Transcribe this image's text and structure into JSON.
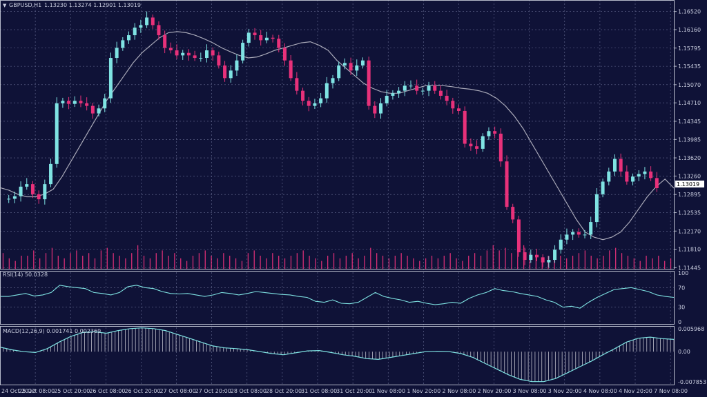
{
  "header": {
    "symbol": "GBPUSD,H1",
    "ohlc": "1.13230 1.13274 1.12901 1.13019"
  },
  "price_axis": {
    "ticks": [
      "1.16520",
      "1.16160",
      "1.15795",
      "1.15435",
      "1.15070",
      "1.14710",
      "1.14345",
      "1.13985",
      "1.13620",
      "1.13260",
      "1.12895",
      "1.12535",
      "1.12170",
      "1.11810",
      "1.11445"
    ],
    "current_price": "1.13019"
  },
  "rsi": {
    "label": "RSI(14) 50.0328",
    "ticks": [
      "100",
      "70",
      "30",
      "0"
    ]
  },
  "macd": {
    "label": "MACD(12,26,9) 0.001741 0.002369",
    "ticks": [
      "0.005968",
      "0.00",
      "-0.007853"
    ]
  },
  "time_axis": {
    "labels": [
      "24 Oct 2022",
      "25 Oct 08:00",
      "25 Oct 20:00",
      "26 Oct 08:00",
      "26 Oct 20:00",
      "27 Oct 08:00",
      "27 Oct 20:00",
      "28 Oct 08:00",
      "28 Oct 20:00",
      "31 Oct 08:00",
      "31 Oct 20:00",
      "1 Nov 08:00",
      "1 Nov 20:00",
      "2 Nov 08:00",
      "2 Nov 20:00",
      "3 Nov 08:00",
      "3 Nov 20:00",
      "4 Nov 08:00",
      "4 Nov 20:00",
      "7 Nov 08:00"
    ]
  },
  "colors": {
    "background": "#0f1237",
    "grid": "#6a6f96",
    "bull": "#7fe3e3",
    "bear": "#e8317a",
    "ma": "#a9a9b8",
    "rsi_line": "#7fe3e3",
    "macd_line": "#7fe3e3",
    "macd_hist": "#c0c0cc",
    "volume": "#e8317a",
    "price_tag_bg": "#ffffff",
    "price_tag_text": "#000000"
  },
  "chart_data": {
    "type": "candlestick",
    "symbol": "GBPUSD",
    "timeframe": "H1",
    "ylim": [
      1.1145,
      1.1672
    ],
    "price_series": [
      1.128,
      1.1281,
      1.1286,
      1.1305,
      1.131,
      1.129,
      1.128,
      1.131,
      1.135,
      1.147,
      1.1475,
      1.1469,
      1.1475,
      1.147,
      1.1465,
      1.145,
      1.146,
      1.148,
      1.156,
      1.158,
      1.1595,
      1.1605,
      1.162,
      1.1625,
      1.164,
      1.1625,
      1.1605,
      1.158,
      1.1575,
      1.1565,
      1.157,
      1.1565,
      1.156,
      1.156,
      1.1575,
      1.1565,
      1.1545,
      1.152,
      1.1535,
      1.1555,
      1.159,
      1.161,
      1.1605,
      1.1595,
      1.16,
      1.1598,
      1.158,
      1.1555,
      1.152,
      1.1495,
      1.1475,
      1.1465,
      1.147,
      1.148,
      1.151,
      1.152,
      1.1545,
      1.155,
      1.1535,
      1.1545,
      1.1555,
      1.1465,
      1.145,
      1.147,
      1.1485,
      1.149,
      1.1495,
      1.1505,
      1.1505,
      1.1495,
      1.1495,
      1.1505,
      1.1495,
      1.1485,
      1.1475,
      1.146,
      1.1455,
      1.139,
      1.1385,
      1.138,
      1.1405,
      1.1415,
      1.141,
      1.1355,
      1.1265,
      1.124,
      1.1175,
      1.116,
      1.117,
      1.1165,
      1.1155,
      1.116,
      1.118,
      1.12,
      1.121,
      1.1215,
      1.121,
      1.121,
      1.1235,
      1.129,
      1.1315,
      1.1335,
      1.136,
      1.1335,
      1.1315,
      1.1325,
      1.133,
      1.1335,
      1.1322,
      1.1302
    ],
    "ma_series": [
      1.1303,
      1.1298,
      1.129,
      1.1285,
      1.1285,
      1.129,
      1.13,
      1.1325,
      1.1355,
      1.1385,
      1.1415,
      1.1445,
      1.1475,
      1.15,
      1.1525,
      1.155,
      1.157,
      1.1585,
      1.16,
      1.161,
      1.1612,
      1.161,
      1.1605,
      1.1598,
      1.159,
      1.158,
      1.1572,
      1.1565,
      1.156,
      1.1562,
      1.1568,
      1.1575,
      1.158,
      1.1585,
      1.159,
      1.1592,
      1.1585,
      1.1575,
      1.1555,
      1.154,
      1.1525,
      1.151,
      1.15,
      1.1493,
      1.149,
      1.149,
      1.1495,
      1.15,
      1.1505,
      1.1505,
      1.1505,
      1.1503,
      1.15,
      1.1498,
      1.1495,
      1.149,
      1.148,
      1.1465,
      1.1445,
      1.142,
      1.139,
      1.136,
      1.133,
      1.13,
      1.127,
      1.124,
      1.1215,
      1.1205,
      1.12,
      1.1205,
      1.1215,
      1.1235,
      1.126,
      1.1285,
      1.1305,
      1.132,
      1.1302
    ],
    "rsi_values": [
      52,
      52,
      55,
      58,
      53,
      55,
      60,
      75,
      72,
      70,
      68,
      60,
      58,
      55,
      60,
      72,
      75,
      70,
      68,
      62,
      58,
      57,
      58,
      55,
      52,
      55,
      60,
      58,
      55,
      58,
      62,
      60,
      58,
      56,
      55,
      52,
      50,
      42,
      40,
      45,
      38,
      37,
      40,
      50,
      60,
      52,
      48,
      45,
      40,
      42,
      38,
      35,
      37,
      40,
      38,
      48,
      55,
      60,
      68,
      64,
      62,
      58,
      55,
      52,
      45,
      40,
      30,
      32,
      28,
      40,
      50,
      58,
      66,
      68,
      70,
      66,
      62,
      55,
      52,
      50
    ],
    "rsi_range": [
      0,
      100
    ],
    "macd_values": [
      0.0012,
      0.0005,
      0.0,
      -0.0002,
      0.0008,
      0.0025,
      0.004,
      0.005,
      0.0052,
      0.0048,
      0.0055,
      0.006,
      0.0062,
      0.006,
      0.0055,
      0.0045,
      0.0035,
      0.0025,
      0.0015,
      0.001,
      0.0008,
      0.0005,
      0.0,
      -0.0005,
      -0.0008,
      -0.0003,
      0.0002,
      0.0003,
      -0.0002,
      -0.0008,
      -0.0012,
      -0.0018,
      -0.002,
      -0.0015,
      -0.001,
      -0.0005,
      0.0,
      0.0001,
      0.0,
      -0.0005,
      -0.0015,
      -0.003,
      -0.0045,
      -0.006,
      -0.0072,
      -0.0078,
      -0.0078,
      -0.007,
      -0.0055,
      -0.004,
      -0.0025,
      -0.0008,
      0.0008,
      0.0025,
      0.0035,
      0.0038,
      0.0034,
      0.0032
    ],
    "macd_range": [
      -0.007853,
      0.005968
    ],
    "volume_relative": [
      0.6,
      0.4,
      0.3,
      0.5,
      0.5,
      0.7,
      0.4,
      0.6,
      0.8,
      0.5,
      0.4,
      0.6,
      0.7,
      0.5,
      0.6,
      0.4,
      0.7,
      0.8,
      0.6,
      0.5,
      0.4,
      0.6,
      0.9,
      0.5,
      0.4,
      0.6,
      0.7,
      0.5,
      0.6,
      0.4,
      0.3,
      0.5,
      0.6,
      0.7,
      0.5,
      0.4,
      0.6,
      0.5,
      0.4,
      0.3,
      0.6,
      0.7,
      0.5,
      0.4,
      0.6,
      0.5,
      0.4,
      0.5,
      0.6,
      0.7,
      0.5,
      0.4,
      0.3,
      0.5,
      0.6,
      0.4,
      0.5,
      0.6,
      0.4,
      0.5,
      0.8,
      0.6,
      0.5,
      0.4,
      0.5,
      0.6,
      0.5,
      0.4,
      0.3,
      0.4,
      0.5,
      0.4,
      0.5,
      0.6,
      0.4,
      0.3,
      0.5,
      0.6,
      0.5,
      0.7,
      0.9,
      0.7,
      0.8,
      0.6,
      0.7,
      0.9,
      0.6,
      0.5,
      0.4,
      0.5,
      0.6,
      0.5,
      0.4,
      0.5,
      0.6,
      0.7,
      0.5,
      0.4,
      0.5,
      0.7,
      0.8,
      0.6,
      0.5,
      0.4,
      0.3,
      0.5,
      0.4,
      0.5,
      0.3,
      0.4
    ]
  }
}
